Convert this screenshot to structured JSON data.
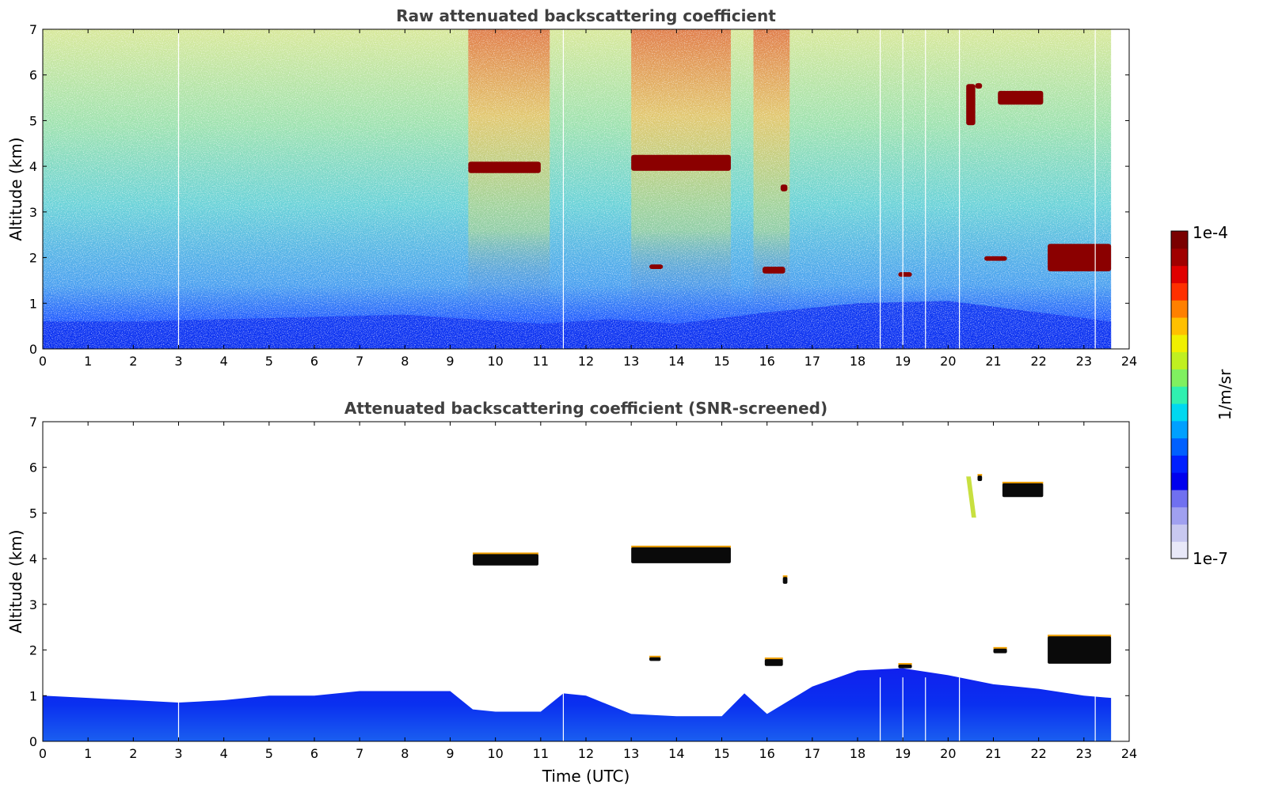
{
  "chart_data": [
    {
      "type": "heatmap",
      "title": "Raw attenuated backscattering coefficient",
      "xlabel": "",
      "ylabel": "Altitude (km)",
      "xlim": [
        0,
        24
      ],
      "ylim": [
        0,
        7
      ],
      "xticks": [
        "0",
        "1",
        "2",
        "3",
        "4",
        "5",
        "6",
        "7",
        "8",
        "9",
        "10",
        "11",
        "12",
        "13",
        "14",
        "15",
        "16",
        "17",
        "18",
        "19",
        "20",
        "21",
        "22",
        "23",
        "24"
      ],
      "yticks": [
        "0",
        "1",
        "2",
        "3",
        "4",
        "5",
        "6",
        "7"
      ],
      "data_end_time": 23.6,
      "boundary_layer": {
        "time": [
          0,
          2,
          4,
          6,
          8,
          9.5,
          11,
          12.5,
          14,
          16,
          18,
          20,
          22,
          23.6
        ],
        "dense_top_km": [
          0.6,
          0.6,
          0.65,
          0.7,
          0.75,
          0.65,
          0.55,
          0.65,
          0.55,
          0.8,
          1.0,
          1.05,
          0.8,
          0.6
        ]
      },
      "cloud_layers": [
        {
          "t_start": 9.4,
          "t_end": 11.0,
          "base_km": 3.85,
          "top_km": 4.1
        },
        {
          "t_start": 13.0,
          "t_end": 15.2,
          "base_km": 3.9,
          "top_km": 4.25
        },
        {
          "t_start": 16.3,
          "t_end": 16.45,
          "base_km": 3.45,
          "top_km": 3.6
        },
        {
          "t_start": 20.6,
          "t_end": 20.75,
          "base_km": 5.7,
          "top_km": 5.82
        },
        {
          "t_start": 21.1,
          "t_end": 22.1,
          "base_km": 5.35,
          "top_km": 5.65
        },
        {
          "t_start": 20.4,
          "t_end": 20.6,
          "base_km": 4.9,
          "top_km": 5.8
        },
        {
          "t_start": 13.4,
          "t_end": 13.7,
          "base_km": 1.75,
          "top_km": 1.85
        },
        {
          "t_start": 15.9,
          "t_end": 16.4,
          "base_km": 1.65,
          "top_km": 1.8
        },
        {
          "t_start": 18.9,
          "t_end": 19.2,
          "base_km": 1.58,
          "top_km": 1.68
        },
        {
          "t_start": 20.8,
          "t_end": 21.3,
          "base_km": 1.93,
          "top_km": 2.03
        },
        {
          "t_start": 22.2,
          "t_end": 23.6,
          "base_km": 1.7,
          "top_km": 2.3
        }
      ],
      "gaps_time": [
        3.0,
        11.5,
        18.5,
        19.0,
        19.5,
        20.25,
        23.25
      ]
    },
    {
      "type": "heatmap",
      "title": "Attenuated backscattering coefficient (SNR-screened)",
      "xlabel": "Time (UTC)",
      "ylabel": "Altitude (km)",
      "xlim": [
        0,
        24
      ],
      "ylim": [
        0,
        7
      ],
      "xticks": [
        "0",
        "1",
        "2",
        "3",
        "4",
        "5",
        "6",
        "7",
        "8",
        "9",
        "10",
        "11",
        "12",
        "13",
        "14",
        "15",
        "16",
        "17",
        "18",
        "19",
        "20",
        "21",
        "22",
        "23",
        "24"
      ],
      "yticks": [
        "0",
        "1",
        "2",
        "3",
        "4",
        "5",
        "6",
        "7"
      ],
      "data_end_time": 23.6,
      "boundary_layer": {
        "time": [
          0,
          1,
          2,
          3,
          4,
          5,
          6,
          7,
          8,
          9,
          9.5,
          10,
          11,
          11.5,
          12,
          13,
          14,
          15,
          15.5,
          16,
          17,
          18,
          19,
          20,
          21,
          22,
          23,
          23.6
        ],
        "top_km": [
          1.0,
          0.95,
          0.9,
          0.85,
          0.9,
          1.0,
          1.0,
          1.1,
          1.1,
          1.1,
          0.7,
          0.65,
          0.65,
          1.05,
          1.0,
          0.6,
          0.55,
          0.55,
          1.05,
          0.6,
          1.2,
          1.55,
          1.6,
          1.45,
          1.25,
          1.15,
          1.0,
          0.95
        ]
      },
      "cloud_layers": [
        {
          "t_start": 9.5,
          "t_end": 10.95,
          "base_km": 3.85,
          "top_km": 4.1
        },
        {
          "t_start": 13.0,
          "t_end": 15.2,
          "base_km": 3.9,
          "top_km": 4.25
        },
        {
          "t_start": 16.35,
          "t_end": 16.45,
          "base_km": 3.45,
          "top_km": 3.6
        },
        {
          "t_start": 20.65,
          "t_end": 20.75,
          "base_km": 5.7,
          "top_km": 5.82
        },
        {
          "t_start": 21.2,
          "t_end": 22.1,
          "base_km": 5.35,
          "top_km": 5.65
        },
        {
          "t_start": 13.4,
          "t_end": 13.65,
          "base_km": 1.76,
          "top_km": 1.84
        },
        {
          "t_start": 15.95,
          "t_end": 16.35,
          "base_km": 1.65,
          "top_km": 1.8
        },
        {
          "t_start": 18.9,
          "t_end": 19.2,
          "base_km": 1.6,
          "top_km": 1.68
        },
        {
          "t_start": 21.0,
          "t_end": 21.3,
          "base_km": 1.93,
          "top_km": 2.03
        },
        {
          "t_start": 22.2,
          "t_end": 23.6,
          "base_km": 1.7,
          "top_km": 2.3
        }
      ],
      "gaps_time": [
        3.0,
        11.5,
        18.5,
        19.0,
        19.5,
        20.25,
        23.25
      ]
    }
  ],
  "colorbar": {
    "label": "1/m/sr",
    "max_label": "1e-4",
    "min_label": "1e-7",
    "colors": [
      "#e8e8f8",
      "#c8c8f0",
      "#a0a0f0",
      "#7070f0",
      "#0000ee",
      "#0020ff",
      "#0060ff",
      "#00a0ff",
      "#00d8f0",
      "#30f0b0",
      "#80f060",
      "#c0f020",
      "#f0f000",
      "#ffc000",
      "#ff8000",
      "#ff3000",
      "#e00000",
      "#a00000",
      "#7a0000"
    ]
  }
}
